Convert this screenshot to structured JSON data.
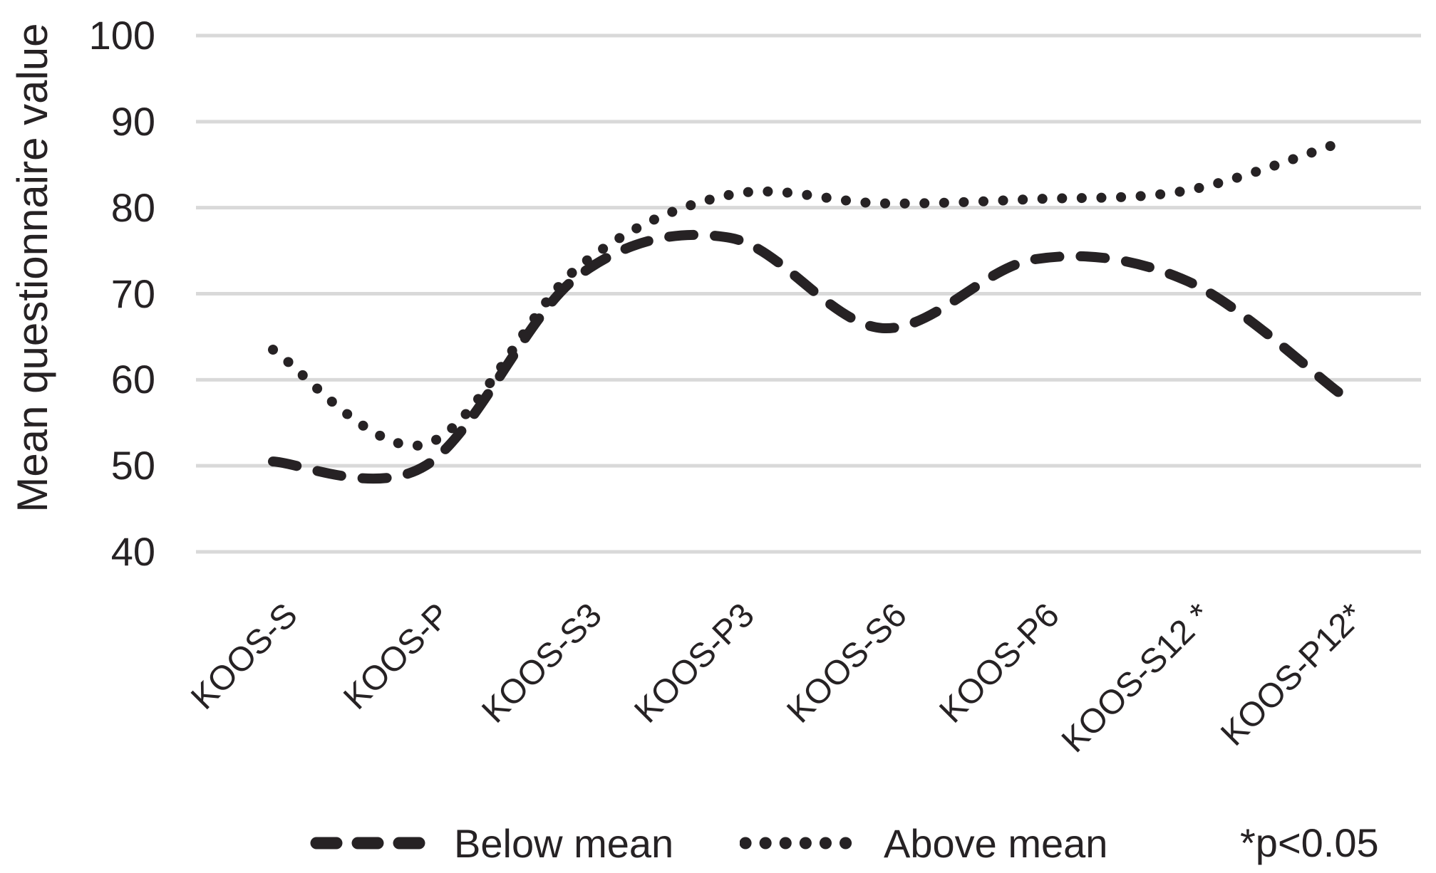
{
  "ylabel": "Mean questionnaire value",
  "legend": {
    "below_label": "Below mean",
    "above_label": "Above mean",
    "annotation": "*p<0.05"
  },
  "colors": {
    "line": "#262224",
    "grid": "#d9d9d9",
    "text": "#262224"
  },
  "chart_data": {
    "type": "line",
    "title": "",
    "xlabel": "",
    "ylabel": "Mean questionnaire value",
    "categories": [
      "KOOS-S",
      "KOOS-P",
      "KOOS-S3",
      "KOOS-P3",
      "KOOS-S6",
      "KOOS-P6",
      "KOOS-S12 *",
      "KOOS-P12*"
    ],
    "series": [
      {
        "name": "Below mean",
        "style": "dashed",
        "values": [
          50.5,
          50,
          72,
          76.5,
          66,
          74,
          71.5,
          58.5
        ]
      },
      {
        "name": "Above mean",
        "style": "dotted",
        "values": [
          63.5,
          52.5,
          73,
          81.5,
          80.5,
          81,
          82,
          87.5
        ]
      }
    ],
    "ylim": [
      40,
      100
    ],
    "yticks": [
      40,
      50,
      60,
      70,
      80,
      90,
      100
    ],
    "grid": true,
    "legend_position": "bottom",
    "annotation": "*p<0.05"
  }
}
